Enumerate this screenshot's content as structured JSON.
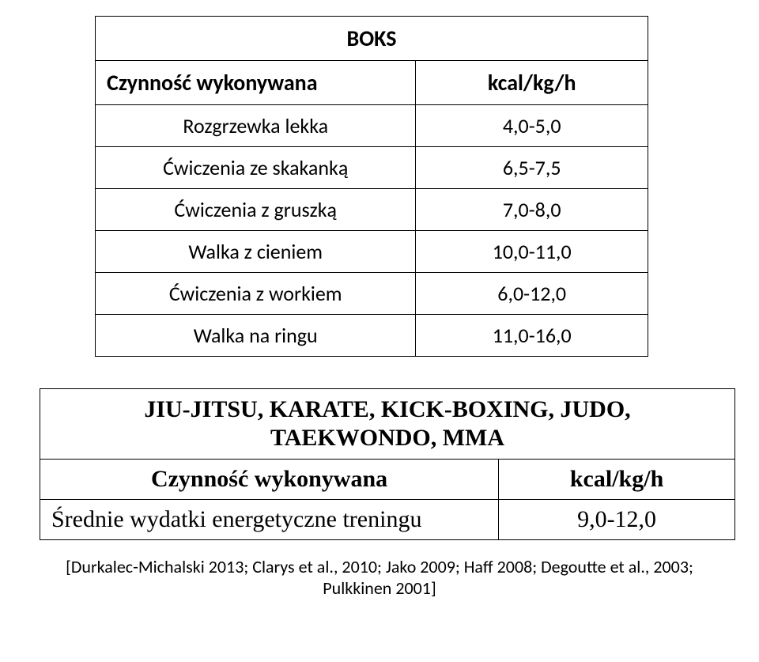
{
  "boks_table": {
    "title": "BOKS",
    "header_activity": "Czynność wykonywana",
    "header_value": "kcal/kg/h",
    "rows": [
      {
        "activity": "Rozgrzewka lekka",
        "value": "4,0-5,0"
      },
      {
        "activity": "Ćwiczenia ze skakanką",
        "value": "6,5-7,5"
      },
      {
        "activity": "Ćwiczenia z gruszką",
        "value": "7,0-8,0"
      },
      {
        "activity": "Walka z cieniem",
        "value": "10,0-11,0"
      },
      {
        "activity": "Ćwiczenia z workiem",
        "value": "6,0-12,0"
      },
      {
        "activity": "Walka na ringu",
        "value": "11,0-16,0"
      }
    ],
    "title_fontsize": 28,
    "header_fontsize": 28,
    "cell_fontsize": 26,
    "border_color": "#000000",
    "background_color": "#ffffff",
    "text_color": "#000000"
  },
  "martial_table": {
    "title_line1": "JIU-JITSU, KARATE, KICK-BOXING, JUDO,",
    "title_line2": "TAEKWONDO, MMA",
    "header_activity": "Czynność wykonywana",
    "header_value": "kcal/kg/h",
    "rows": [
      {
        "activity": "Średnie wydatki energetyczne treningu",
        "value": "9,0-12,0"
      }
    ],
    "title_fontsize": 30,
    "cell_fontsize": 30,
    "border_color": "#000000",
    "background_color": "#ffffff",
    "text_color": "#000000",
    "font_family": "Times New Roman"
  },
  "citation": "[Durkalec-Michalski 2013; Clarys et al., 2010; Jako 2009; Haff 2008; Degoutte et al., 2003; Pulkkinen 2001]"
}
